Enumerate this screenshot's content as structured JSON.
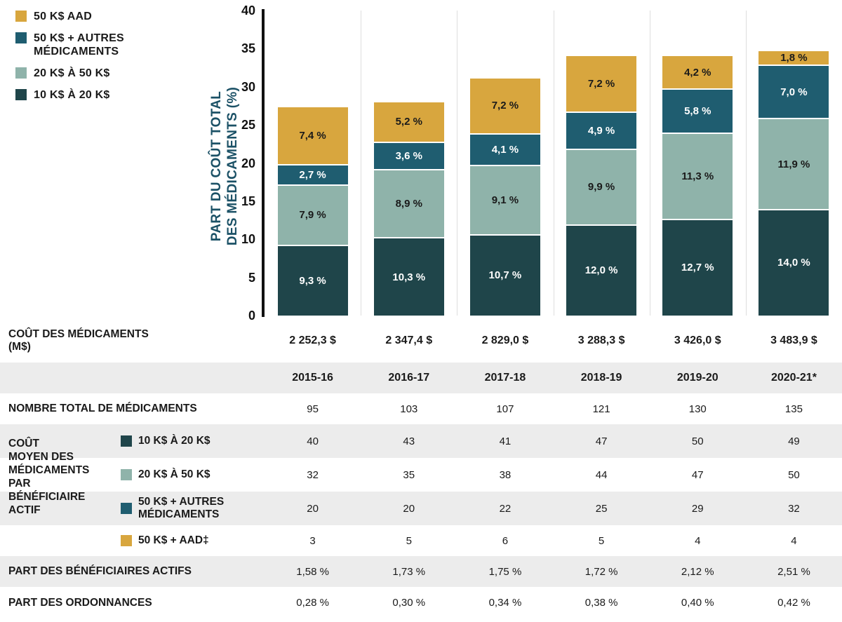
{
  "colors": {
    "gold": "#D8A63E",
    "teal_mid": "#1F5D70",
    "sage": "#8FB3AA",
    "teal_dark": "#1F454A",
    "axis_title": "#1B5166",
    "row_shaded": "#ECECEC",
    "text": "#1a1a1a"
  },
  "legend": {
    "items": [
      {
        "label": "50 K$ AAD",
        "color": "#D8A63E"
      },
      {
        "label": "50 K$ + AUTRES\nMÉDICAMENTS",
        "color": "#1F5D70"
      },
      {
        "label": "20 K$ À 50 K$",
        "color": "#8FB3AA"
      },
      {
        "label": "10 K$ À 20 K$",
        "color": "#1F454A"
      }
    ]
  },
  "chart_data": {
    "type": "bar",
    "stacked": true,
    "title": "",
    "ylabel": "PART DU COÛT TOTAL DES MÉDICAMENTS (%)",
    "ylabel_lines": [
      "PART DU COÛT TOTAL",
      "DES MÉDICAMENTS (%)"
    ],
    "ylim": [
      0,
      40
    ],
    "yticks": [
      0,
      5,
      10,
      15,
      20,
      25,
      30,
      35,
      40
    ],
    "grid": "vertical-separators",
    "legend_position": "top-left",
    "categories": [
      "2015-16",
      "2016-17",
      "2017-18",
      "2018-19",
      "2019-20",
      "2020-21*"
    ],
    "series": [
      {
        "name": "10 K$ À 20 K$",
        "color": "#1F454A",
        "label_color": "#FFFFFF",
        "values": [
          9.3,
          10.3,
          10.7,
          12.0,
          12.7,
          14.0
        ],
        "labels": [
          "9,3 %",
          "10,3 %",
          "10,7 %",
          "12,0 %",
          "12,7 %",
          "14,0 %"
        ]
      },
      {
        "name": "20 K$ À 50 K$",
        "color": "#8FB3AA",
        "label_color": "#1a1a1a",
        "values": [
          7.9,
          8.9,
          9.1,
          9.9,
          11.3,
          11.9
        ],
        "labels": [
          "7,9 %",
          "8,9 %",
          "9,1 %",
          "9,9 %",
          "11,3 %",
          "11,9 %"
        ]
      },
      {
        "name": "50 K$ + AUTRES MÉDICAMENTS",
        "color": "#1F5D70",
        "label_color": "#FFFFFF",
        "values": [
          2.7,
          3.6,
          4.1,
          4.9,
          5.8,
          7.0
        ],
        "labels": [
          "2,7 %",
          "3,6 %",
          "4,1 %",
          "4,9 %",
          "5,8 %",
          "7,0 %"
        ]
      },
      {
        "name": "50 K$ AAD",
        "color": "#D8A63E",
        "label_color": "#1a1a1a",
        "values": [
          7.4,
          5.2,
          7.2,
          7.2,
          4.2,
          1.8
        ],
        "labels": [
          "7,4 %",
          "5,2 %",
          "7,2 %",
          "7,2 %",
          "4,2 %",
          "1,8 %"
        ]
      }
    ]
  },
  "table": {
    "group_label": "COÛT\nMOYEN DES\nMÉDICAMENTS\nPAR\nBÉNÉFICIAIRE\nACTIF",
    "rows": [
      {
        "id": "cout-medicaments",
        "label": "COÛT DES MÉDICAMENTS\n(M$)",
        "values": [
          "2 252,3 $",
          "2 347,4 $",
          "2 829,0 $",
          "3 288,3 $",
          "3 426,0 $",
          "3 483,9 $"
        ],
        "shaded": false,
        "strong_values": true
      },
      {
        "id": "years",
        "label": "",
        "values": [
          "2015-16",
          "2016-17",
          "2017-18",
          "2018-19",
          "2019-20",
          "2020-21*"
        ],
        "shaded": true,
        "strong_values": true
      },
      {
        "id": "nombre-total-medicaments",
        "label": "NOMBRE TOTAL DE MÉDICAMENTS",
        "values": [
          "95",
          "103",
          "107",
          "121",
          "130",
          "135"
        ],
        "shaded": false,
        "strong_values": false
      },
      {
        "id": "cout-moyen-10-20",
        "label": "10 K$ À 20 K$",
        "swatch": "#1F454A",
        "values": [
          "40",
          "43",
          "41",
          "47",
          "50",
          "49"
        ],
        "shaded": true,
        "strong_values": false
      },
      {
        "id": "cout-moyen-20-50",
        "label": "20 K$ À 50 K$",
        "swatch": "#8FB3AA",
        "values": [
          "32",
          "35",
          "38",
          "44",
          "47",
          "50"
        ],
        "shaded": false,
        "strong_values": false
      },
      {
        "id": "cout-moyen-50-autres",
        "label": "50 K$ + AUTRES\nMÉDICAMENTS",
        "swatch": "#1F5D70",
        "values": [
          "20",
          "20",
          "22",
          "25",
          "29",
          "32"
        ],
        "shaded": true,
        "strong_values": false
      },
      {
        "id": "cout-moyen-50-aad",
        "label": "50 K$ + AAD‡",
        "swatch": "#D8A63E",
        "values": [
          "3",
          "5",
          "6",
          "5",
          "4",
          "4"
        ],
        "shaded": false,
        "strong_values": false
      },
      {
        "id": "part-beneficiaires-actifs",
        "label": "PART DES BÉNÉFICIAIRES ACTIFS",
        "values": [
          "1,58 %",
          "1,73 %",
          "1,75 %",
          "1,72 %",
          "2,12 %",
          "2,51 %"
        ],
        "shaded": true,
        "strong_values": false
      },
      {
        "id": "part-ordonnances",
        "label": "PART DES ORDONNANCES",
        "values": [
          "0,28 %",
          "0,30 %",
          "0,34 %",
          "0,38 %",
          "0,40 %",
          "0,42 %"
        ],
        "shaded": false,
        "strong_values": false
      }
    ]
  }
}
